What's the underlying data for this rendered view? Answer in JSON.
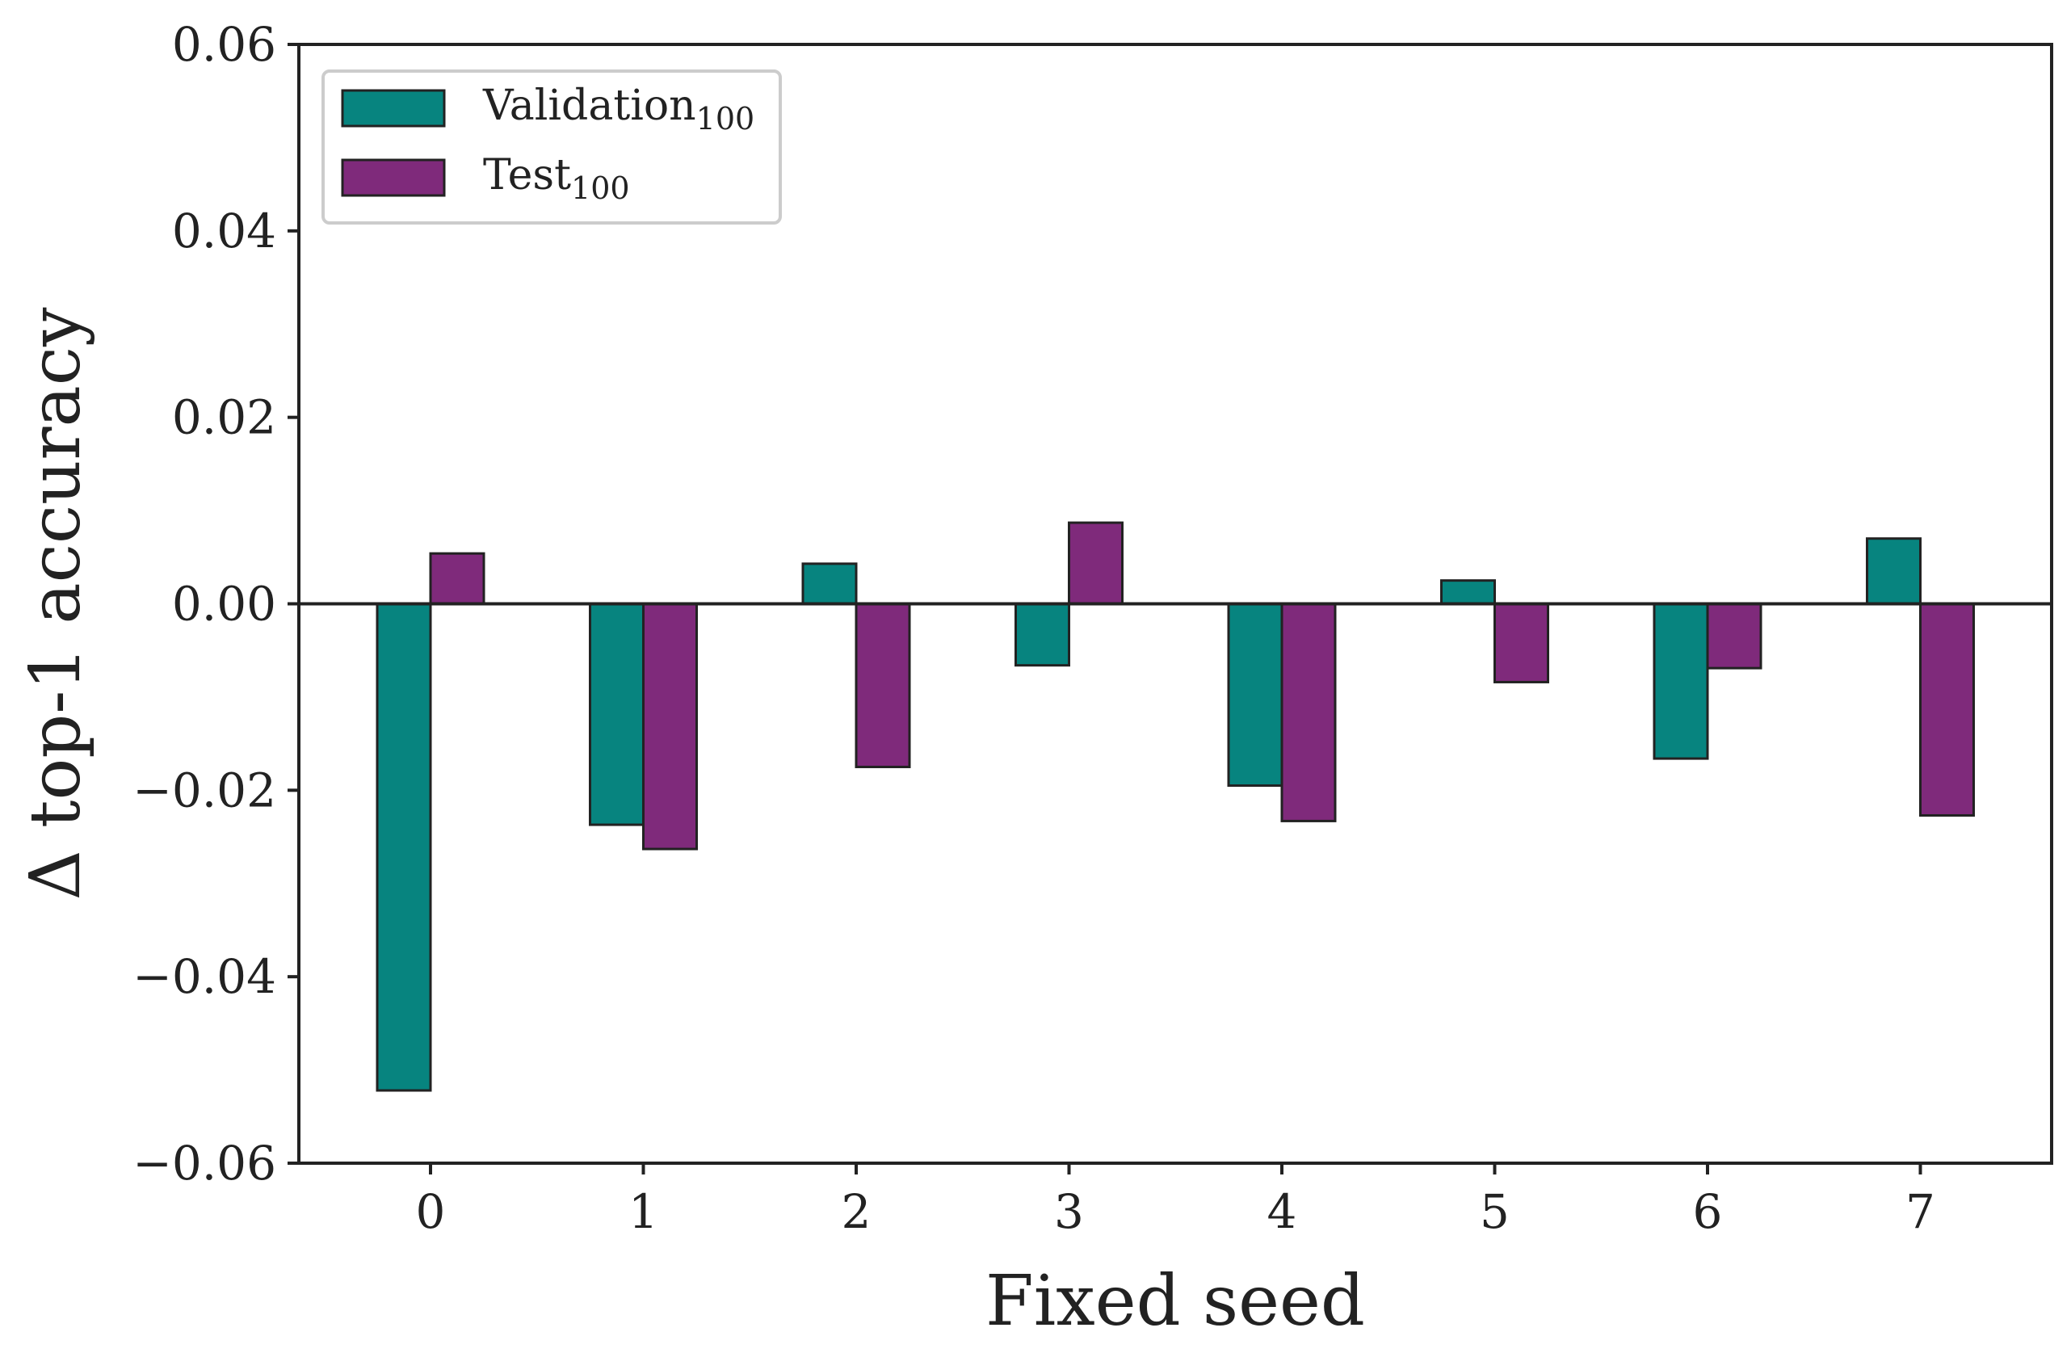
{
  "chart_data": {
    "type": "bar",
    "title": "",
    "xlabel": "Fixed seed",
    "ylabel": "Δ top-1 accuracy",
    "categories": [
      "0",
      "1",
      "2",
      "3",
      "4",
      "5",
      "6",
      "7"
    ],
    "series": [
      {
        "name": "Validation",
        "name_subscript": "100",
        "color": "#07847f",
        "values": [
          -0.0522,
          -0.0237,
          0.0043,
          -0.0066,
          -0.0195,
          0.0025,
          -0.0166,
          0.007
        ]
      },
      {
        "name": "Test",
        "name_subscript": "100",
        "color": "#7f2a7b",
        "values": [
          0.0054,
          -0.0263,
          -0.0175,
          0.0087,
          -0.0233,
          -0.0084,
          -0.0069,
          -0.0227
        ]
      }
    ],
    "ylim": [
      -0.06,
      0.06
    ],
    "yticks": [
      {
        "value": 0.06,
        "label": "0.06"
      },
      {
        "value": 0.04,
        "label": "0.04"
      },
      {
        "value": 0.02,
        "label": "0.02"
      },
      {
        "value": 0.0,
        "label": "0.00"
      },
      {
        "value": -0.02,
        "label": "−0.02"
      },
      {
        "value": -0.04,
        "label": "−0.04"
      },
      {
        "value": -0.06,
        "label": "−0.06"
      }
    ],
    "grid": false,
    "legend_position": "top-left",
    "zero_line": true
  }
}
